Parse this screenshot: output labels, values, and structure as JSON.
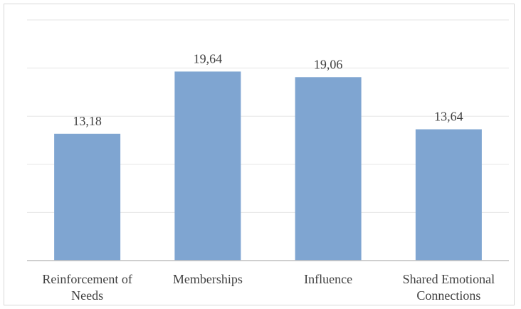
{
  "chart_data": {
    "type": "bar",
    "categories": [
      [
        "Reinforcement of",
        "Needs"
      ],
      [
        "Memberships"
      ],
      [
        "Influence"
      ],
      [
        "Shared Emotional",
        "Connections"
      ]
    ],
    "values": [
      13.18,
      19.64,
      19.06,
      13.64
    ],
    "value_labels": [
      "13,18",
      "19,64",
      "19,06",
      "13,64"
    ],
    "title": "",
    "xlabel": "",
    "ylabel": "",
    "ylim": [
      0,
      25
    ],
    "grid": true,
    "legend": "none",
    "colors": {
      "bar": "#7fa5d1",
      "grid": "#e6e6e6",
      "axis": "#bfbfbf",
      "text": "#404040"
    }
  }
}
